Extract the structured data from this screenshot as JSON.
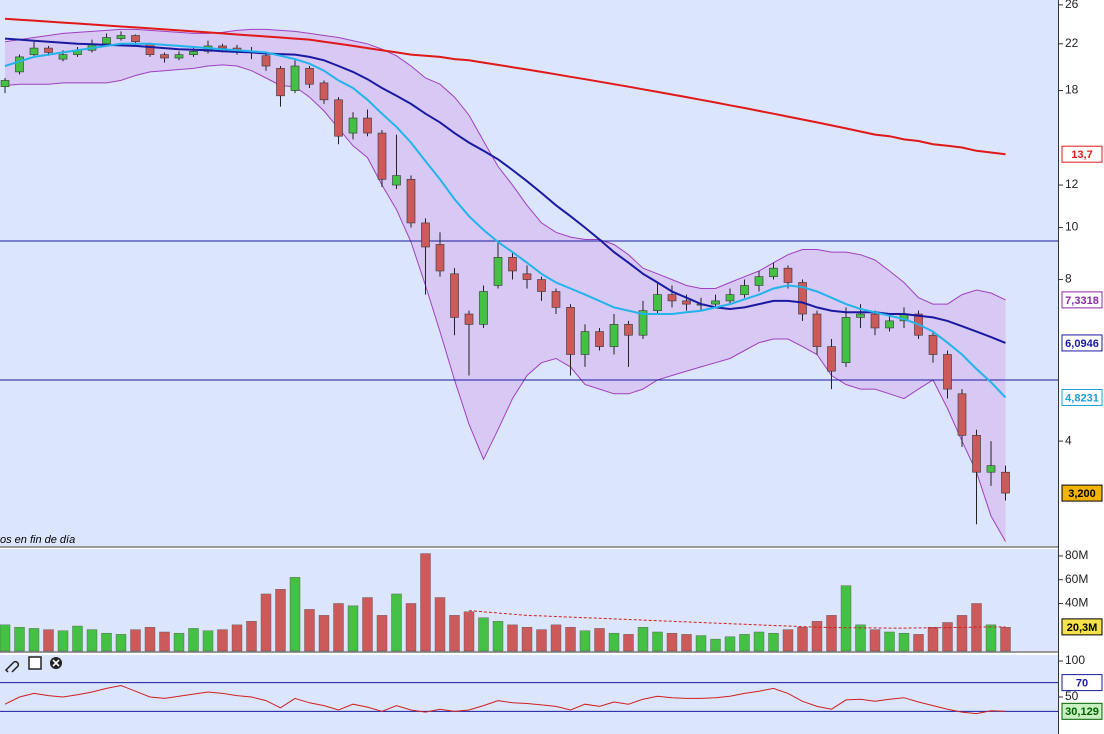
{
  "chart_data": [
    {
      "type": "candlestick",
      "log_scale": true,
      "ylim": [
        2.55,
        26.55
      ],
      "yticks": [
        4,
        8,
        10,
        12,
        18,
        22,
        26
      ],
      "annotation": "os en fin de día",
      "up_color": "#44c044",
      "down_color": "#cc5a5a",
      "open": [
        18.3,
        19.5,
        21.0,
        21.6,
        20.6,
        21.0,
        21.4,
        22.0,
        22.5,
        22.8,
        22.0,
        21.0,
        20.7,
        21.0,
        21.3,
        21.8,
        21.6,
        21.3,
        20.9,
        19.8,
        18.0,
        19.8,
        18.6,
        17.3,
        15.0,
        16.0,
        15.0,
        12.0,
        12.3,
        10.2,
        9.3,
        8.2,
        6.9,
        6.6,
        7.8,
        8.8,
        8.2,
        8.0,
        7.6,
        7.1,
        5.8,
        6.4,
        6.0,
        6.6,
        6.3,
        7.0,
        7.5,
        7.3,
        7.2,
        7.2,
        7.3,
        7.5,
        7.8,
        8.1,
        8.4,
        7.9,
        6.9,
        6.0,
        5.6,
        6.8,
        6.9,
        6.5,
        6.7,
        6.9,
        6.3,
        5.8,
        4.9,
        4.1,
        3.5,
        3.5
      ],
      "high": [
        19.0,
        21.0,
        22.2,
        21.8,
        21.4,
        21.7,
        22.4,
        23.0,
        23.2,
        22.9,
        22.1,
        21.2,
        21.3,
        21.6,
        22.3,
        22.0,
        21.9,
        21.7,
        21.0,
        20.0,
        20.5,
        20.0,
        18.8,
        17.5,
        16.4,
        16.6,
        15.2,
        14.9,
        12.5,
        10.4,
        9.8,
        8.4,
        7.0,
        7.8,
        9.4,
        9.0,
        8.5,
        8.1,
        7.7,
        7.2,
        6.6,
        6.5,
        6.9,
        6.7,
        7.3,
        7.9,
        7.8,
        7.5,
        7.4,
        7.5,
        7.7,
        8.0,
        8.3,
        8.6,
        8.5,
        8.0,
        7.0,
        6.2,
        7.1,
        7.2,
        7.0,
        6.9,
        7.1,
        7.0,
        6.4,
        5.9,
        5.0,
        4.2,
        4.0,
        3.6
      ],
      "low": [
        17.8,
        19.3,
        20.8,
        20.9,
        20.4,
        20.8,
        21.2,
        21.9,
        22.3,
        21.9,
        20.8,
        20.3,
        20.5,
        20.8,
        21.1,
        21.2,
        21.0,
        20.6,
        19.6,
        16.8,
        17.8,
        18.2,
        17.0,
        14.3,
        14.6,
        14.8,
        11.9,
        11.8,
        10.0,
        7.5,
        8.1,
        6.3,
        5.3,
        6.5,
        7.7,
        8.0,
        7.7,
        7.3,
        6.9,
        5.3,
        5.5,
        5.9,
        5.8,
        5.5,
        6.2,
        6.9,
        7.1,
        7.0,
        7.0,
        7.1,
        7.2,
        7.4,
        7.6,
        8.0,
        7.7,
        6.7,
        5.8,
        5.0,
        5.5,
        6.5,
        6.3,
        6.4,
        6.5,
        6.2,
        5.6,
        4.8,
        3.9,
        2.8,
        3.3,
        3.1
      ],
      "close": [
        18.8,
        20.8,
        21.6,
        21.2,
        21.0,
        21.4,
        22.0,
        22.6,
        22.8,
        22.2,
        21.0,
        20.7,
        21.0,
        21.3,
        21.8,
        21.6,
        21.3,
        21.2,
        20.0,
        17.6,
        20.0,
        18.5,
        17.3,
        14.8,
        16.0,
        15.0,
        12.3,
        12.5,
        10.2,
        9.2,
        8.3,
        6.8,
        6.6,
        7.6,
        8.8,
        8.3,
        8.0,
        7.6,
        7.1,
        5.8,
        6.4,
        6.0,
        6.6,
        6.3,
        7.0,
        7.5,
        7.3,
        7.2,
        7.2,
        7.3,
        7.5,
        7.8,
        8.1,
        8.4,
        7.9,
        6.9,
        6.0,
        5.4,
        6.8,
        6.9,
        6.5,
        6.7,
        6.9,
        6.3,
        5.8,
        5.0,
        4.1,
        3.5,
        3.6,
        3.2
      ],
      "band": {
        "color": "#a040c0",
        "fill": "#d8c8f4",
        "upper": [
          22.2,
          22.4,
          22.6,
          22.8,
          23.0,
          23.1,
          23.2,
          23.3,
          23.4,
          23.4,
          23.3,
          23.2,
          23.1,
          23.0,
          23.0,
          23.1,
          23.3,
          23.4,
          23.4,
          23.3,
          23.2,
          23.0,
          22.8,
          22.6,
          22.3,
          22.0,
          21.5,
          20.9,
          20.0,
          19.0,
          18.5,
          17.5,
          16.2,
          14.5,
          13.0,
          12.0,
          11.0,
          10.2,
          9.8,
          9.6,
          9.5,
          9.5,
          9.3,
          8.9,
          8.4,
          8.2,
          8.0,
          7.8,
          7.7,
          7.7,
          7.9,
          8.1,
          8.3,
          8.6,
          8.9,
          9.1,
          9.1,
          9.0,
          9.0,
          8.9,
          8.7,
          8.3,
          7.9,
          7.4,
          7.2,
          7.2,
          7.5,
          7.65,
          7.55,
          7.3318
        ],
        "lower": [
          18.4,
          18.5,
          18.5,
          18.5,
          18.6,
          18.6,
          18.6,
          18.6,
          18.8,
          19.2,
          19.5,
          19.6,
          19.7,
          19.8,
          20.0,
          20.1,
          20.0,
          19.6,
          19.0,
          18.4,
          18.3,
          17.5,
          16.5,
          15.3,
          14.2,
          13.5,
          12.0,
          10.8,
          9.4,
          7.8,
          6.4,
          5.2,
          4.3,
          3.7,
          4.2,
          4.8,
          5.3,
          5.6,
          5.7,
          5.5,
          5.1,
          5.0,
          4.9,
          4.9,
          5.0,
          5.2,
          5.3,
          5.4,
          5.5,
          5.6,
          5.7,
          5.9,
          6.1,
          6.2,
          6.2,
          6.0,
          5.8,
          5.3,
          5.1,
          5.0,
          5.0,
          4.9,
          4.8,
          5.0,
          5.2,
          4.6,
          4.0,
          3.5,
          2.9,
          2.6
        ]
      },
      "lines": [
        {
          "color": "#e01818",
          "values": [
            24.5,
            24.4,
            24.3,
            24.2,
            24.1,
            24.0,
            23.9,
            23.8,
            23.7,
            23.6,
            23.5,
            23.4,
            23.3,
            23.2,
            23.1,
            23.0,
            22.9,
            22.8,
            22.7,
            22.6,
            22.5,
            22.4,
            22.2,
            22.0,
            21.8,
            21.6,
            21.4,
            21.2,
            21.0,
            20.9,
            20.8,
            20.6,
            20.5,
            20.3,
            20.1,
            19.9,
            19.7,
            19.5,
            19.3,
            19.1,
            18.9,
            18.7,
            18.5,
            18.3,
            18.1,
            17.9,
            17.7,
            17.5,
            17.3,
            17.1,
            16.9,
            16.7,
            16.5,
            16.3,
            16.1,
            15.9,
            15.7,
            15.5,
            15.3,
            15.1,
            14.9,
            14.8,
            14.6,
            14.5,
            14.3,
            14.2,
            14.1,
            13.9,
            13.8,
            13.7
          ]
        },
        {
          "color": "#1a1aa0",
          "values": [
            22.5,
            22.4,
            22.3,
            22.2,
            22.1,
            22.0,
            21.95,
            21.9,
            21.85,
            21.8,
            21.7,
            21.6,
            21.5,
            21.45,
            21.4,
            21.3,
            21.25,
            21.2,
            21.1,
            21.05,
            21.0,
            20.8,
            20.5,
            20.0,
            19.5,
            18.9,
            18.2,
            17.6,
            17.0,
            16.3,
            15.7,
            15.0,
            14.4,
            13.9,
            13.4,
            12.8,
            12.2,
            11.6,
            11.0,
            10.5,
            10.0,
            9.5,
            9.0,
            8.6,
            8.2,
            7.9,
            7.6,
            7.4,
            7.2,
            7.1,
            7.05,
            7.1,
            7.2,
            7.3,
            7.3,
            7.25,
            7.1,
            7.0,
            6.95,
            6.95,
            6.95,
            6.9,
            6.9,
            6.85,
            6.8,
            6.7,
            6.55,
            6.4,
            6.25,
            6.0946
          ]
        },
        {
          "color": "#22b4ea",
          "values": [
            20.0,
            20.4,
            20.8,
            21.0,
            21.2,
            21.4,
            21.6,
            21.8,
            22.0,
            22.0,
            22.0,
            21.9,
            21.8,
            21.7,
            21.6,
            21.5,
            21.4,
            21.3,
            21.2,
            20.9,
            20.6,
            20.2,
            19.6,
            18.8,
            18.2,
            17.3,
            16.3,
            15.4,
            14.4,
            13.3,
            12.3,
            11.3,
            10.5,
            9.9,
            9.4,
            9.0,
            8.6,
            8.2,
            7.9,
            7.7,
            7.5,
            7.3,
            7.1,
            7.0,
            6.9,
            6.9,
            6.9,
            6.95,
            7.0,
            7.1,
            7.2,
            7.35,
            7.5,
            7.7,
            7.8,
            7.75,
            7.6,
            7.4,
            7.2,
            7.05,
            6.95,
            6.85,
            6.75,
            6.6,
            6.4,
            6.1,
            5.8,
            5.45,
            5.15,
            4.8231
          ]
        }
      ],
      "levels": [
        9.44,
        5.2
      ],
      "level_color": "#1a1aa0",
      "tags": [
        {
          "value": 13.7,
          "label": "13,7",
          "color": "#e01818",
          "fill": "#ffffff"
        },
        {
          "value": 7.3318,
          "label": "7,3318",
          "color": "#8a2aa8",
          "fill": "#ffffff"
        },
        {
          "value": 6.0946,
          "label": "6,0946",
          "color": "#1a1aa0",
          "fill": "#ffffff"
        },
        {
          "value": 4.8231,
          "label": "4,8231",
          "color": "#1aa0d8",
          "fill": "#ffffff"
        },
        {
          "value": 3.2,
          "label": "3,200",
          "color": "#000000",
          "fill": "#f2b400"
        }
      ]
    },
    {
      "type": "volume",
      "ylim": [
        0,
        85
      ],
      "yticks": [
        {
          "value": 40,
          "label": "40M"
        },
        {
          "value": 60,
          "label": "60M"
        },
        {
          "value": 80,
          "label": "80M"
        }
      ],
      "values": [
        22,
        20,
        19,
        18,
        17,
        21,
        18,
        15,
        14,
        18,
        20,
        16,
        15,
        19,
        17,
        18,
        22,
        25,
        48,
        52,
        62,
        35,
        30,
        40,
        38,
        45,
        30,
        48,
        40,
        82,
        45,
        30,
        33,
        28,
        25,
        22,
        20,
        18,
        22,
        20,
        17,
        19,
        15,
        14,
        20,
        16,
        15,
        14,
        13,
        10,
        12,
        14,
        16,
        15,
        18,
        20,
        25,
        30,
        55,
        22,
        18,
        16,
        15,
        14,
        20,
        24,
        30,
        40,
        22,
        20
      ],
      "average": {
        "color": "#d02020",
        "values": [
          null,
          null,
          null,
          null,
          null,
          null,
          null,
          null,
          null,
          null,
          null,
          null,
          null,
          null,
          null,
          null,
          null,
          null,
          null,
          null,
          null,
          null,
          null,
          null,
          null,
          null,
          null,
          null,
          null,
          null,
          null,
          null,
          34,
          33,
          32,
          31,
          30,
          29.5,
          29,
          28.5,
          28,
          27.5,
          27,
          26.5,
          26,
          25.5,
          25,
          24.5,
          24,
          23.5,
          23,
          22.5,
          22,
          21.5,
          21,
          20.5,
          20,
          19.8,
          19.6,
          19.5,
          19.4,
          19.3,
          19.3,
          19.4,
          19.5,
          19.7,
          19.9,
          20.1,
          20.2,
          20.3
        ]
      },
      "tags": [
        {
          "value": 20.3,
          "label": "20,3M",
          "color": "#000000",
          "fill": "#f6e24a"
        }
      ]
    },
    {
      "type": "rsi",
      "ylim": [
        0,
        100
      ],
      "yticks": [
        100,
        50
      ],
      "color": "#d02020",
      "up_color": "#22a022",
      "values": [
        40,
        50,
        55,
        52,
        50,
        53,
        57,
        62,
        66,
        58,
        50,
        48,
        51,
        54,
        57,
        55,
        52,
        50,
        45,
        35,
        48,
        42,
        38,
        32,
        40,
        36,
        30,
        38,
        32,
        29,
        33,
        30,
        32,
        38,
        45,
        42,
        41,
        39,
        37,
        32,
        40,
        37,
        43,
        40,
        47,
        51,
        49,
        48,
        48,
        49,
        51,
        55,
        58,
        62,
        55,
        44,
        37,
        33,
        46,
        47,
        44,
        47,
        49,
        43,
        38,
        33,
        29,
        27,
        31,
        30.129
      ],
      "levels": [
        70,
        30
      ],
      "level_color": "#1a1aa0",
      "tags": [
        {
          "value": 70,
          "label": "70",
          "color": "#1a1aa0",
          "fill": "#ffffff"
        },
        {
          "value": 30.129,
          "label": "30,129",
          "color": "#006000",
          "fill": "#c8f0c0"
        }
      ]
    }
  ]
}
